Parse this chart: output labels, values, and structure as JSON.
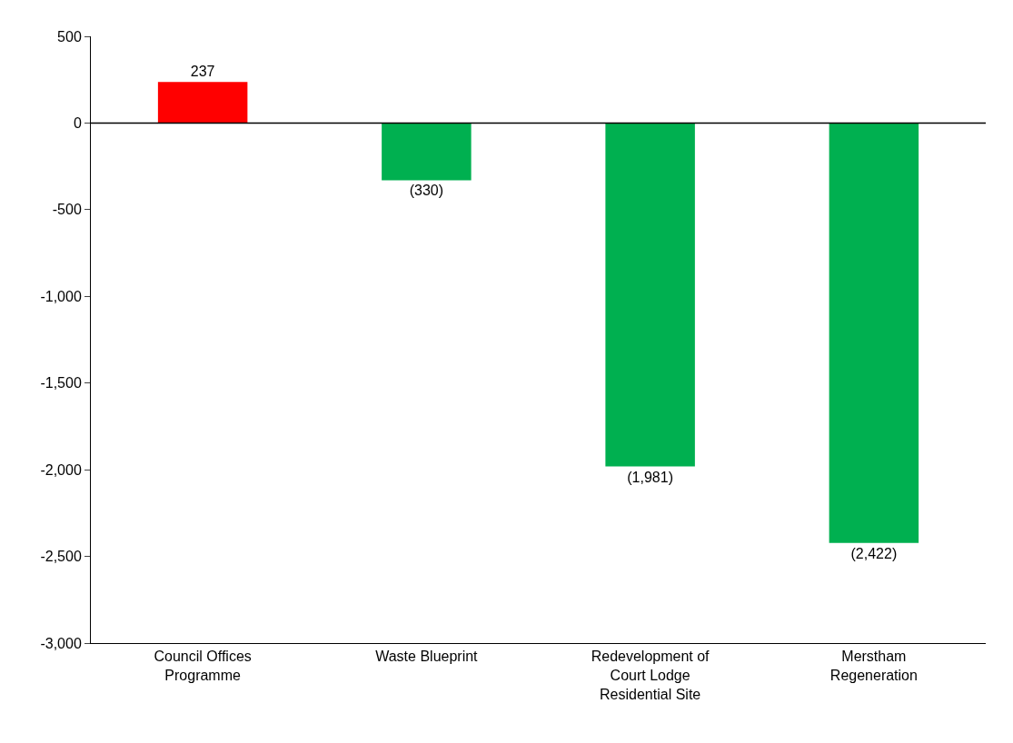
{
  "chart_data": {
    "type": "bar",
    "categories": [
      "Council Offices Programme",
      "Waste Blueprint",
      "Redevelopment of Court Lodge Residential Site",
      "Merstham Regeneration"
    ],
    "values": [
      237,
      -330,
      -1981,
      -2422
    ],
    "colors": [
      "#ff0000",
      "#00b050",
      "#00b050",
      "#00b050"
    ],
    "value_labels": [
      "237",
      "(330)",
      "(1,981)",
      "(2,422)"
    ],
    "ylim": [
      -3000,
      500
    ],
    "yticks": [
      {
        "value": -3000,
        "label": "-3,000"
      },
      {
        "value": -2500,
        "label": "-2,500"
      },
      {
        "value": -2000,
        "label": "-2,000"
      },
      {
        "value": -1500,
        "label": "-1,500"
      },
      {
        "value": -1000,
        "label": "-1,000"
      },
      {
        "value": -500,
        "label": "-500"
      },
      0,
      500
    ],
    "ref_lines": [
      {
        "axis": "y",
        "value": 0,
        "color": "#000000"
      }
    ],
    "legend": false
  }
}
